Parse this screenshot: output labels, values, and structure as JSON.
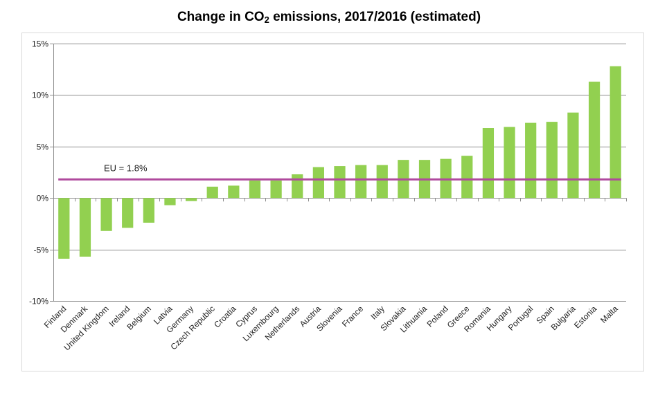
{
  "chart_data": {
    "type": "bar",
    "title": {
      "prefix": "Change in CO",
      "subscript": "2",
      "suffix": " emissions, 2017/2016 (estimated)"
    },
    "xlabel": "",
    "ylabel": "",
    "categories": [
      "Finland",
      "Denmark",
      "United Kingdom",
      "Ireland",
      "Belgium",
      "Latvia",
      "Germany",
      "Czech Republic",
      "Croatia",
      "Cyprus",
      "Luxembourg",
      "Netherlands",
      "Austria",
      "Slovenia",
      "France",
      "Italy",
      "Slovakia",
      "Lithuania",
      "Poland",
      "Greece",
      "Romania",
      "Hungary",
      "Portugal",
      "Spain",
      "Bulgaria",
      "Estonia",
      "Malta"
    ],
    "values": [
      -5.9,
      -5.7,
      -3.2,
      -2.9,
      -2.4,
      -0.7,
      -0.3,
      1.1,
      1.2,
      1.7,
      1.7,
      2.3,
      3.0,
      3.1,
      3.2,
      3.2,
      3.7,
      3.7,
      3.8,
      4.1,
      6.8,
      6.9,
      7.3,
      7.4,
      8.3,
      11.3,
      12.8
    ],
    "ylim": [
      -10,
      15
    ],
    "yticks": [
      -10,
      -5,
      0,
      5,
      10,
      15
    ],
    "ytick_labels": [
      "-10%",
      "-5%",
      "0%",
      "5%",
      "10%",
      "15%"
    ],
    "grid": true,
    "bar_color": "#92d050",
    "reference_line": {
      "value": 1.8,
      "label": "EU = 1.8%",
      "color": "#b04a9d"
    }
  }
}
